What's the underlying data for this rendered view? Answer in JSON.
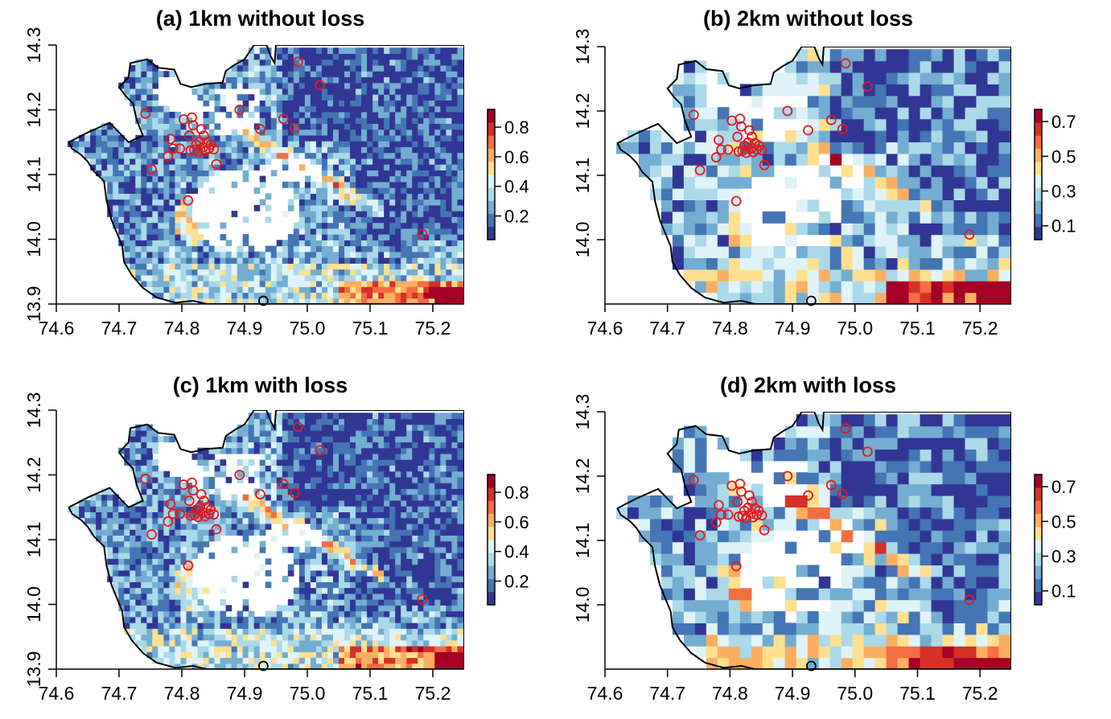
{
  "colors": {
    "palette_low_to_high": [
      "#313695",
      "#4575b4",
      "#74add1",
      "#abd9e9",
      "#e0f3f8",
      "#fee090",
      "#fdae61",
      "#f46d43",
      "#d73027",
      "#a50026"
    ],
    "site_marker": "#e31a1c",
    "reference_marker": "#000000",
    "outline": "#000000"
  },
  "chart_data": [
    {
      "type": "heatmap",
      "title": "(a) 1km without loss",
      "resolution_km": 1,
      "x_range": [
        74.6,
        75.25
      ],
      "y_range": [
        13.9,
        14.3
      ],
      "x_ticks": [
        "74.6",
        "74.7",
        "74.8",
        "74.9",
        "75.0",
        "75.1",
        "75.2"
      ],
      "y_ticks": [
        "13.9",
        "14.0",
        "14.1",
        "14.2",
        "14.3"
      ],
      "colorbar": {
        "range": [
          0.04,
          0.92
        ],
        "ticks": [
          "0.2",
          "0.4",
          "0.6",
          "0.8"
        ]
      },
      "red_circle_markers": "site locations",
      "black_circle_marker": [
        74.93,
        13.905
      ]
    },
    {
      "type": "heatmap",
      "title": "(b) 2km without loss",
      "resolution_km": 2,
      "x_range": [
        74.6,
        75.25
      ],
      "y_range": [
        13.9,
        14.3
      ],
      "x_ticks": [
        "74.6",
        "74.7",
        "74.8",
        "74.9",
        "75.0",
        "75.1",
        "75.2"
      ],
      "y_ticks": [
        "14.0",
        "14.1",
        "14.2",
        "14.3"
      ],
      "colorbar": {
        "range": [
          0.02,
          0.77
        ],
        "ticks": [
          "0.1",
          "0.3",
          "0.5",
          "0.7"
        ]
      },
      "red_circle_markers": "site locations",
      "black_circle_marker": [
        74.93,
        13.905
      ]
    },
    {
      "type": "heatmap",
      "title": "(c) 1km with loss",
      "resolution_km": 1,
      "x_range": [
        74.6,
        75.25
      ],
      "y_range": [
        13.9,
        14.3
      ],
      "x_ticks": [
        "74.6",
        "74.7",
        "74.8",
        "74.9",
        "75.0",
        "75.1",
        "75.2"
      ],
      "y_ticks": [
        "13.9",
        "14.0",
        "14.1",
        "14.2",
        "14.3"
      ],
      "colorbar": {
        "range": [
          0.04,
          0.92
        ],
        "ticks": [
          "0.2",
          "0.4",
          "0.6",
          "0.8"
        ]
      },
      "red_circle_markers": "site locations",
      "black_circle_marker": [
        74.93,
        13.905
      ]
    },
    {
      "type": "heatmap",
      "title": "(d) 2km with loss",
      "resolution_km": 2,
      "x_range": [
        74.6,
        75.25
      ],
      "y_range": [
        13.9,
        14.3
      ],
      "x_ticks": [
        "74.6",
        "74.7",
        "74.8",
        "74.9",
        "75.0",
        "75.1",
        "75.2"
      ],
      "y_ticks": [
        "14.0",
        "14.1",
        "14.2",
        "14.3"
      ],
      "colorbar": {
        "range": [
          0.02,
          0.77
        ],
        "ticks": [
          "0.1",
          "0.3",
          "0.5",
          "0.7"
        ]
      },
      "red_circle_markers": "site locations",
      "black_circle_marker": [
        74.93,
        13.905
      ]
    }
  ],
  "sites": [
    [
      74.742,
      14.194
    ],
    [
      74.752,
      14.108
    ],
    [
      74.778,
      14.128
    ],
    [
      74.782,
      14.155
    ],
    [
      74.786,
      14.14
    ],
    [
      74.797,
      14.14
    ],
    [
      74.803,
      14.185
    ],
    [
      74.81,
      14.06
    ],
    [
      74.812,
      14.16
    ],
    [
      74.816,
      14.188
    ],
    [
      74.818,
      14.176
    ],
    [
      74.82,
      14.138
    ],
    [
      74.823,
      14.146
    ],
    [
      74.826,
      14.135
    ],
    [
      74.829,
      14.151
    ],
    [
      74.831,
      14.17
    ],
    [
      74.834,
      14.142
    ],
    [
      74.837,
      14.136
    ],
    [
      74.84,
      14.15
    ],
    [
      74.843,
      14.14
    ],
    [
      74.846,
      14.146
    ],
    [
      74.851,
      14.139
    ],
    [
      74.855,
      14.116
    ],
    [
      74.814,
      14.137
    ],
    [
      74.835,
      14.16
    ],
    [
      74.892,
      14.2
    ],
    [
      74.925,
      14.17
    ],
    [
      74.962,
      14.186
    ],
    [
      74.98,
      14.172
    ],
    [
      74.985,
      14.274
    ],
    [
      75.02,
      14.238
    ],
    [
      75.183,
      14.008
    ]
  ]
}
